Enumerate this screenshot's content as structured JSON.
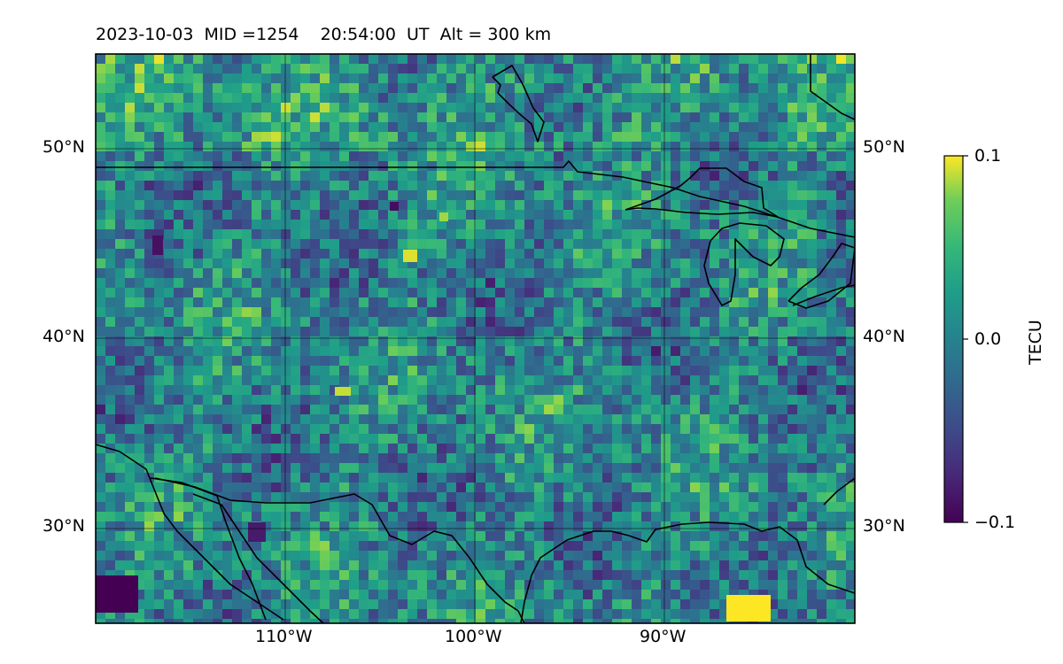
{
  "chart_data": {
    "type": "heatmap",
    "title": "2023-10-03  MID =1254    20:54:00  UT  Alt = 300 km",
    "lon_range": [
      -120,
      -80
    ],
    "lat_range": [
      25,
      55
    ],
    "lat_ticks": [
      {
        "value": 30,
        "label": "30°N"
      },
      {
        "value": 40,
        "label": "40°N"
      },
      {
        "value": 50,
        "label": "50°N"
      }
    ],
    "lon_ticks": [
      {
        "value": -110,
        "label": "110°W"
      },
      {
        "value": -100,
        "label": "100°W"
      },
      {
        "value": -90,
        "label": "90°W"
      }
    ],
    "colorbar": {
      "label": "TECU",
      "vmin": -0.1,
      "vmax": 0.1,
      "tick_labels": [
        "0.1",
        "0.0",
        "−0.1"
      ],
      "colormap": "viridis"
    },
    "grid": true,
    "map_features": [
      "coastlines",
      "country borders",
      "Great Lakes"
    ]
  }
}
